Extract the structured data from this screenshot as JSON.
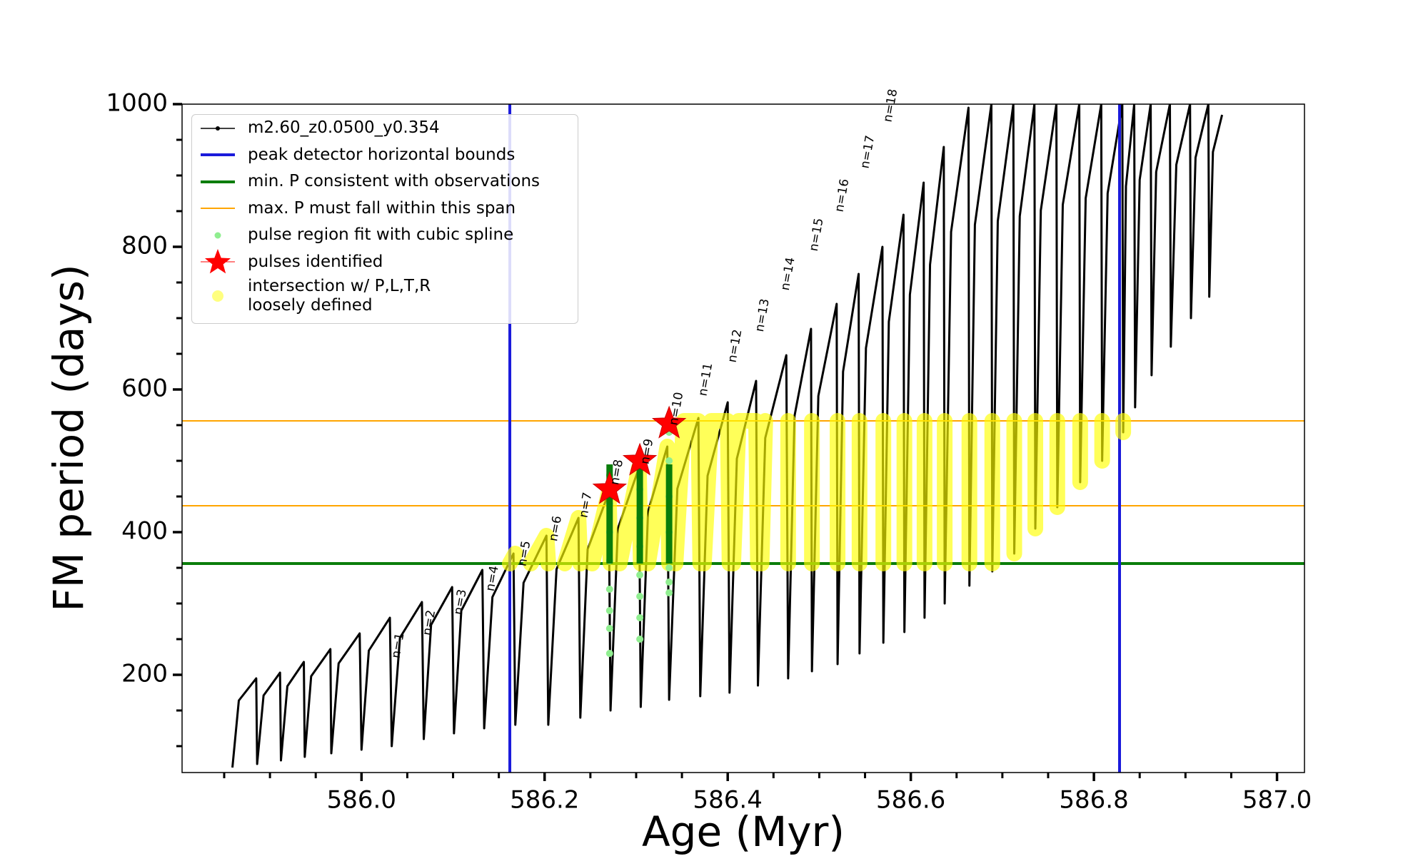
{
  "chart_data": {
    "type": "line",
    "xlabel": "Age (Myr)",
    "ylabel": "FM period (days)",
    "xlim": [
      585.804,
      587.03
    ],
    "ylim": [
      63,
      1000
    ],
    "xticks": [
      {
        "value": 586,
        "label": "586.0"
      },
      {
        "value": 586.2,
        "label": "586.2"
      },
      {
        "value": 586.4,
        "label": "586.4"
      },
      {
        "value": 586.6,
        "label": "586.6"
      },
      {
        "value": 586.8,
        "label": "586.8"
      },
      {
        "value": 587,
        "label": "587.0"
      }
    ],
    "xminorticks": [
      585.85,
      585.9,
      585.95,
      586.05,
      586.1,
      586.15,
      586.25,
      586.3,
      586.35,
      586.45,
      586.5,
      586.55,
      586.65,
      586.7,
      586.75,
      586.85,
      586.9,
      586.95
    ],
    "yticks": [
      200,
      400,
      600,
      800,
      1000
    ],
    "yminorticks": [
      100,
      150,
      250,
      300,
      350,
      450,
      500,
      550,
      650,
      700,
      750,
      850,
      900,
      950
    ],
    "grid": false,
    "legend": "upper left",
    "series": [
      {
        "name": "m2.60_z0.0500_y0.354",
        "kind": "line",
        "color": "#000000",
        "linewidth": 3,
        "x": [
          585.859,
          585.866,
          585.885,
          585.886,
          585.893,
          585.911,
          585.912,
          585.919,
          585.937,
          585.938,
          585.945,
          585.966,
          585.967,
          585.975,
          585.998,
          586.0,
          586.008,
          586.031,
          586.033,
          586.042,
          586.066,
          586.068,
          586.076,
          586.099,
          586.101,
          586.109,
          586.132,
          586.134,
          586.143,
          586.166,
          586.168,
          586.177,
          586.202,
          586.204,
          586.213,
          586.237,
          586.239,
          586.247,
          586.27,
          586.272,
          586.28,
          586.303,
          586.305,
          586.313,
          586.334,
          586.336,
          586.345,
          586.368,
          586.37,
          586.378,
          586.4,
          586.402,
          586.41,
          586.431,
          586.433,
          586.441,
          586.464,
          586.466,
          586.473,
          586.491,
          586.492,
          586.499,
          586.519,
          586.52,
          586.526,
          586.543,
          586.544,
          586.551,
          586.569,
          586.57,
          586.576,
          586.592,
          586.593,
          586.599,
          586.614,
          586.615,
          586.621,
          586.636,
          586.637,
          586.644,
          586.663,
          586.664,
          586.67,
          586.688,
          586.689,
          586.695,
          586.712,
          586.713,
          586.719,
          586.735,
          586.736,
          586.742,
          586.759,
          586.76,
          586.766,
          586.784,
          586.785,
          586.791,
          586.808,
          586.809,
          586.815,
          586.831,
          586.832,
          586.835,
          586.844,
          586.845,
          586.85,
          586.862,
          586.863,
          586.868,
          586.883,
          586.884,
          586.89,
          586.905,
          586.906,
          586.911,
          586.925,
          586.926,
          586.93,
          586.94
        ],
        "values": [
          70,
          164,
          195,
          75,
          171,
          203,
          80,
          184,
          218,
          85,
          198,
          236,
          90,
          216,
          258,
          95,
          234,
          280,
          100,
          252,
          302,
          110,
          270,
          323,
          118,
          290,
          347,
          125,
          309,
          370,
          130,
          329,
          395,
          130,
          348,
          420,
          140,
          376,
          455,
          150,
          405,
          490,
          155,
          429,
          520,
          165,
          461,
          560,
          170,
          479,
          582,
          175,
          503,
          612,
          185,
          532,
          648,
          195,
          563,
          685,
          205,
          591,
          720,
          215,
          625,
          762,
          230,
          658,
          800,
          245,
          695,
          845,
          260,
          733,
          890,
          280,
          775,
          940,
          300,
          821,
          995,
          325,
          831,
          1000,
          345,
          836,
          1000,
          370,
          843,
          1000,
          405,
          851,
          1000,
          435,
          859,
          1000,
          470,
          868,
          1000,
          500,
          875,
          1000,
          540,
          885,
          1000,
          575,
          894,
          1000,
          620,
          905,
          1000,
          660,
          915,
          1000,
          700,
          925,
          1000,
          730,
          933,
          985
        ]
      },
      {
        "name": "peak detector horizontal bounds",
        "kind": "vline",
        "color": "#1a1adb",
        "linewidth": 4,
        "x": [
          586.162,
          586.828
        ]
      },
      {
        "name": "min. P consistent with observations",
        "kind": "hline",
        "color": "#0a7d0a",
        "linewidth": 4,
        "values": [
          356
        ]
      },
      {
        "name": "max. P must fall within this span",
        "kind": "hline",
        "color": "#ffa500",
        "linewidth": 2,
        "values": [
          437,
          556
        ]
      },
      {
        "name": "pulse region fit with cubic spline",
        "kind": "scatter",
        "color": "#90ee90",
        "x": [
          586.271,
          586.271,
          586.271,
          586.271,
          586.271,
          586.271,
          586.271,
          586.271,
          586.304,
          586.304,
          586.304,
          586.304,
          586.304,
          586.304,
          586.304,
          586.304,
          586.336,
          586.336,
          586.336,
          586.336,
          586.336,
          586.336,
          586.336
        ],
        "values": [
          230,
          265,
          290,
          320,
          360,
          400,
          440,
          480,
          250,
          280,
          310,
          340,
          380,
          420,
          460,
          490,
          315,
          330,
          350,
          400,
          450,
          500,
          540
        ]
      },
      {
        "name": "pulses identified",
        "kind": "star",
        "color": "#ff0000",
        "x": [
          586.271,
          586.304,
          586.336
        ],
        "values": [
          460,
          500,
          552
        ]
      },
      {
        "name": "intersection w/ P,L,T,R\nloosely defined",
        "kind": "thick",
        "color": "#ffff00",
        "linewidth": 22,
        "x": [
          586.162,
          586.168,
          null,
          586.185,
          586.202,
          586.204,
          null,
          586.222,
          586.237,
          586.239,
          null,
          586.252,
          586.27,
          586.272,
          null,
          586.282,
          586.303,
          586.305,
          null,
          586.313,
          586.334,
          586.336,
          null,
          586.343,
          586.352,
          586.368,
          586.37,
          null,
          586.374,
          586.382,
          586.4,
          586.402,
          null,
          586.406,
          586.412,
          586.431,
          586.433,
          null,
          586.437,
          586.441,
          null,
          586.466,
          586.466,
          null,
          586.492,
          586.492,
          null,
          586.52,
          586.52,
          null,
          586.544,
          586.544,
          null,
          586.57,
          586.57,
          null,
          586.593,
          586.593,
          null,
          586.615,
          586.615,
          null,
          586.637,
          586.637,
          null,
          586.664,
          586.664,
          null,
          586.689,
          586.689,
          null,
          586.713,
          586.713,
          null,
          586.736,
          586.736,
          null,
          586.76,
          586.76,
          null,
          586.785,
          586.785,
          null,
          586.809,
          586.809,
          null,
          586.832,
          586.832
        ],
        "values": [
          356,
          370,
          null,
          356,
          395,
          356,
          null,
          356,
          420,
          356,
          null,
          356,
          455,
          356,
          null,
          356,
          490,
          356,
          null,
          356,
          520,
          356,
          null,
          356,
          556,
          556,
          356,
          null,
          356,
          556,
          556,
          356,
          null,
          356,
          556,
          556,
          356,
          null,
          356,
          556,
          null,
          356,
          556,
          null,
          356,
          556,
          null,
          356,
          556,
          null,
          356,
          556,
          null,
          356,
          556,
          null,
          356,
          556,
          null,
          356,
          556,
          null,
          356,
          556,
          null,
          356,
          556,
          null,
          356,
          556,
          null,
          370,
          556,
          null,
          405,
          556,
          null,
          435,
          556,
          null,
          470,
          556,
          null,
          500,
          556,
          null,
          540,
          556
        ]
      },
      {
        "kind": "line",
        "color": "#0a7d0a",
        "linewidth": 9,
        "x": [
          586.271,
          586.271,
          null,
          586.304,
          586.304,
          null,
          586.336,
          586.336
        ],
        "values": [
          356,
          495,
          null,
          356,
          500,
          null,
          356,
          495
        ]
      }
    ],
    "annotations": [
      {
        "text": "n=1",
        "x": 586.04,
        "y": 241
      },
      {
        "text": "n=2",
        "x": 586.074,
        "y": 273
      },
      {
        "text": "n=3",
        "x": 586.108,
        "y": 302
      },
      {
        "text": "n=4",
        "x": 586.143,
        "y": 335
      },
      {
        "text": "n=5",
        "x": 586.178,
        "y": 370
      },
      {
        "text": "n=6",
        "x": 586.212,
        "y": 405
      },
      {
        "text": "n=7",
        "x": 586.245,
        "y": 438
      },
      {
        "text": "n=8",
        "x": 586.279,
        "y": 484
      },
      {
        "text": "n=9",
        "x": 586.312,
        "y": 513
      },
      {
        "text": "n=10",
        "x": 586.344,
        "y": 573
      },
      {
        "text": "n=11",
        "x": 586.376,
        "y": 614
      },
      {
        "text": "n=12",
        "x": 586.408,
        "y": 661
      },
      {
        "text": "n=13",
        "x": 586.438,
        "y": 704
      },
      {
        "text": "n=14",
        "x": 586.466,
        "y": 762
      },
      {
        "text": "n=15",
        "x": 586.497,
        "y": 817
      },
      {
        "text": "n=16",
        "x": 586.525,
        "y": 872
      },
      {
        "text": "n=17",
        "x": 586.553,
        "y": 933
      },
      {
        "text": "n=18",
        "x": 586.578,
        "y": 998
      }
    ]
  }
}
